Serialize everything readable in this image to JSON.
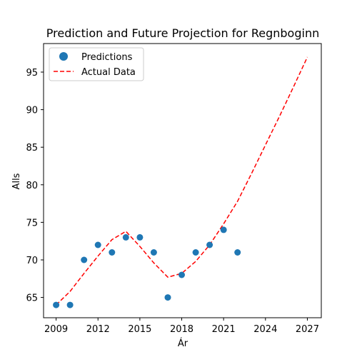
{
  "chart_data": {
    "type": "scatter",
    "title": "Prediction and Future Projection for Regnboginn",
    "xlabel": "Ár",
    "ylabel": "Alls",
    "xlim": [
      2008.1,
      2028.0
    ],
    "ylim": [
      62.3,
      98.8
    ],
    "xticks": [
      2009,
      2012,
      2015,
      2018,
      2021,
      2024,
      2027
    ],
    "yticks": [
      65,
      70,
      75,
      80,
      85,
      90,
      95
    ],
    "grid": false,
    "legend_position": "top-left",
    "series": [
      {
        "name": "Predictions",
        "kind": "scatter",
        "color": "#1f77b4",
        "x": [
          2009,
          2010,
          2011,
          2012,
          2013,
          2014,
          2015,
          2016,
          2017,
          2018,
          2019,
          2020,
          2021,
          2022
        ],
        "y": [
          64,
          64,
          70,
          72,
          71,
          73,
          73,
          71,
          65,
          68,
          71,
          72,
          74,
          71
        ]
      },
      {
        "name": "Actual Data",
        "kind": "line",
        "style": "dashed",
        "color": "#ff0000",
        "x": [
          2009,
          2010,
          2011,
          2012,
          2013,
          2014,
          2015,
          2016,
          2017,
          2018,
          2019,
          2020,
          2021,
          2022,
          2023,
          2024,
          2025,
          2026,
          2027
        ],
        "y": [
          64.0,
          65.8,
          68.2,
          70.5,
          72.7,
          73.8,
          71.8,
          69.6,
          67.7,
          68.2,
          69.8,
          72.0,
          74.8,
          77.8,
          81.5,
          85.3,
          89.1,
          93.0,
          97.0
        ]
      }
    ]
  }
}
